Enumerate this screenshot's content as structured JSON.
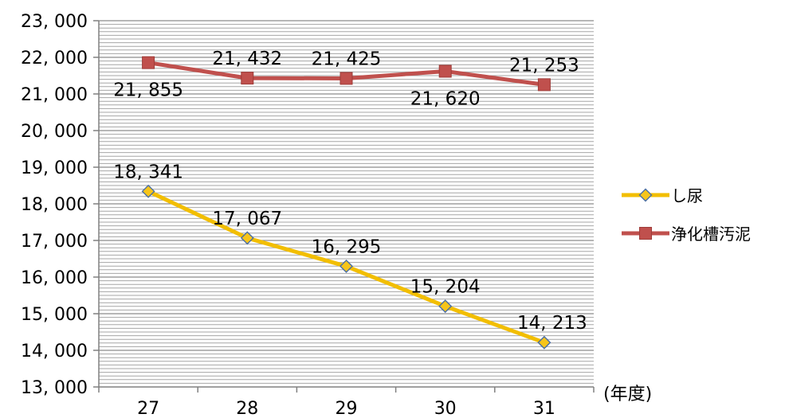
{
  "chart_data": {
    "type": "line",
    "title": "",
    "xlabel": "(年度)",
    "ylabel": "",
    "categories": [
      "27",
      "28",
      "29",
      "30",
      "31"
    ],
    "ylim": [
      13000,
      23000
    ],
    "y_tick_labels": [
      "13, 000",
      "14, 000",
      "15, 000",
      "16, 000",
      "17, 000",
      "18, 000",
      "19, 000",
      "20, 000",
      "21, 000",
      "22, 000",
      "23, 000"
    ],
    "y_tick_values": [
      13000,
      14000,
      15000,
      16000,
      17000,
      18000,
      19000,
      20000,
      21000,
      22000,
      23000
    ],
    "grid": true,
    "legend_position": "right",
    "series": [
      {
        "name": "し尿",
        "color": "#F2BE00",
        "marker": "diamond",
        "marker_fill": "#F7C51A",
        "marker_edge": "#4A6FA5",
        "values": [
          18341,
          17067,
          16295,
          15204,
          14213
        ],
        "labels": [
          "18, 341",
          "17, 067",
          "16, 295",
          "15, 204",
          "14, 213"
        ],
        "label_positions": [
          "above",
          "above",
          "above",
          "above",
          "above-right"
        ]
      },
      {
        "name": "浄化槽汚泥",
        "color": "#C0504D",
        "marker": "square",
        "marker_fill": "#C0504D",
        "marker_edge": "#9E3B38",
        "values": [
          21855,
          21432,
          21425,
          21620,
          21253
        ],
        "labels": [
          "21, 855",
          "21, 432",
          "21, 425",
          "21, 620",
          "21, 253"
        ],
        "label_positions": [
          "below",
          "above",
          "above",
          "below",
          "above"
        ]
      }
    ]
  }
}
